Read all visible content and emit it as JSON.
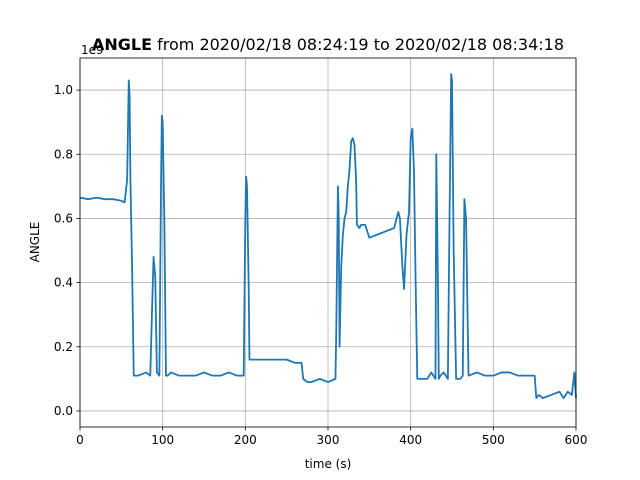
{
  "chart_data": {
    "type": "line",
    "title_bold": "ANGLE",
    "title_rest": " from 2020/02/18 08:24:19 to 2020/02/18 08:34:18",
    "xlabel": "time (s)",
    "ylabel": "ANGLE",
    "offset_text": "1e9",
    "xlim": [
      0,
      600
    ],
    "ylim": [
      -0.05,
      1.1
    ],
    "xticks": [
      0,
      100,
      200,
      300,
      400,
      500,
      600
    ],
    "yticks": [
      0.0,
      0.2,
      0.4,
      0.6,
      0.8,
      1.0
    ],
    "xtick_labels": [
      "0",
      "100",
      "200",
      "300",
      "400",
      "500",
      "600"
    ],
    "ytick_labels": [
      "0.0",
      "0.2",
      "0.4",
      "0.6",
      "0.8",
      "1.0"
    ],
    "grid": true,
    "line_color": "#1f77b4",
    "series": [
      {
        "x": [
          0,
          10,
          20,
          30,
          40,
          50,
          54,
          57,
          59,
          60,
          61,
          63,
          65,
          70,
          80,
          85,
          87,
          89,
          91,
          93,
          96,
          98,
          99,
          100,
          102,
          104,
          106,
          110,
          120,
          130,
          140,
          150,
          160,
          170,
          180,
          190,
          198,
          200,
          201,
          202,
          204,
          205,
          207,
          210,
          220,
          230,
          240,
          250,
          260,
          268,
          270,
          275,
          280,
          290,
          300,
          309,
          310,
          312,
          313,
          314,
          316,
          318,
          320,
          322,
          324,
          326,
          328,
          330,
          332,
          334,
          335,
          338,
          340,
          345,
          350,
          360,
          370,
          380,
          385,
          387,
          390,
          392,
          395,
          398,
          400,
          402,
          404,
          406,
          408,
          410,
          415,
          420,
          425,
          430,
          431,
          433,
          434,
          436,
          440,
          445,
          447,
          449,
          450,
          452,
          455,
          460,
          463,
          465,
          467,
          470,
          480,
          490,
          500,
          510,
          520,
          530,
          540,
          550,
          552,
          555,
          560,
          570,
          580,
          585,
          590,
          595,
          598,
          600
        ],
        "y": [
          0.665,
          0.66,
          0.665,
          0.66,
          0.66,
          0.655,
          0.65,
          0.72,
          1.03,
          0.98,
          0.72,
          0.45,
          0.11,
          0.11,
          0.12,
          0.11,
          0.3,
          0.48,
          0.42,
          0.12,
          0.11,
          0.7,
          0.92,
          0.9,
          0.6,
          0.11,
          0.11,
          0.12,
          0.11,
          0.11,
          0.11,
          0.12,
          0.11,
          0.11,
          0.12,
          0.11,
          0.11,
          0.6,
          0.73,
          0.7,
          0.4,
          0.16,
          0.16,
          0.16,
          0.16,
          0.16,
          0.16,
          0.16,
          0.15,
          0.15,
          0.1,
          0.09,
          0.09,
          0.1,
          0.09,
          0.1,
          0.25,
          0.7,
          0.6,
          0.2,
          0.45,
          0.55,
          0.6,
          0.62,
          0.7,
          0.75,
          0.84,
          0.85,
          0.83,
          0.72,
          0.58,
          0.57,
          0.58,
          0.58,
          0.54,
          0.55,
          0.56,
          0.57,
          0.62,
          0.6,
          0.45,
          0.38,
          0.55,
          0.62,
          0.85,
          0.88,
          0.75,
          0.4,
          0.1,
          0.1,
          0.1,
          0.1,
          0.12,
          0.1,
          0.8,
          0.4,
          0.1,
          0.11,
          0.12,
          0.1,
          0.6,
          1.05,
          1.03,
          0.5,
          0.1,
          0.1,
          0.11,
          0.66,
          0.6,
          0.11,
          0.12,
          0.11,
          0.11,
          0.12,
          0.12,
          0.11,
          0.11,
          0.11,
          0.04,
          0.05,
          0.04,
          0.05,
          0.06,
          0.04,
          0.06,
          0.05,
          0.12,
          0.04
        ]
      }
    ]
  }
}
